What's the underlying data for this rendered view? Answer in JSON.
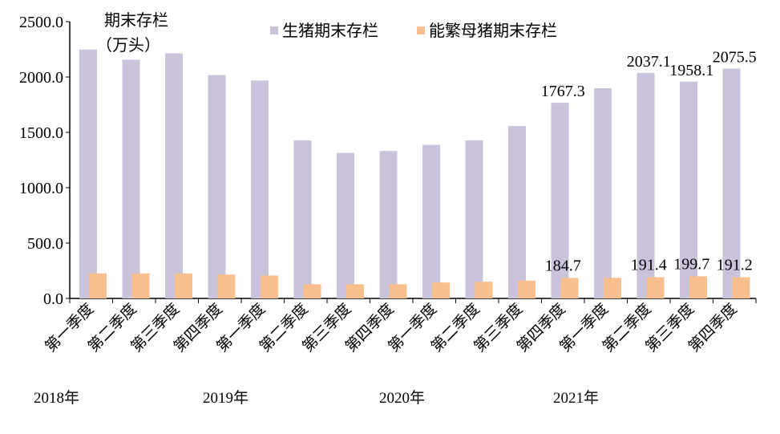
{
  "chart_data": {
    "type": "bar",
    "ylabel": "期末存栏（万头）",
    "ylabel_lines": [
      "期末存栏",
      "（万头）"
    ],
    "ylim": [
      0,
      2500
    ],
    "yticks": [
      "0.0",
      "500.0",
      "1000.0",
      "1500.0",
      "2000.0",
      "2500.0"
    ],
    "grid": false,
    "legend_position": "top",
    "categories": [
      "第一季度",
      "第二季度",
      "第三季度",
      "第四季度",
      "第一季度",
      "第二季度",
      "第三季度",
      "第四季度",
      "第一季度",
      "第二季度",
      "第三季度",
      "第四季度",
      "第一季度",
      "第二季度",
      "第三季度",
      "第四季度"
    ],
    "year_labels": [
      "2018年",
      "2019年",
      "2020年",
      "2021年"
    ],
    "series": [
      {
        "name": "生猪期末存栏",
        "color": "#CBC3DB",
        "values": [
          2248,
          2156,
          2214,
          2017,
          1969,
          1428,
          1315,
          1332,
          1387,
          1428,
          1558,
          1767.3,
          1899,
          2037.1,
          1958.1,
          2075.5
        ],
        "data_labels": {
          "11": "1767.3",
          "13": "2037.1",
          "14": "1958.1",
          "15": "2075.5"
        }
      },
      {
        "name": "能繁母猪期末存栏",
        "color": "#F8C08F",
        "values": [
          226,
          226,
          226,
          216,
          207,
          128,
          128,
          128,
          144,
          151,
          161,
          184.7,
          186,
          191.4,
          199.7,
          191.2
        ],
        "data_labels": {
          "11": "184.7",
          "13": "191.4",
          "14": "199.7",
          "15": "191.2"
        }
      }
    ]
  }
}
